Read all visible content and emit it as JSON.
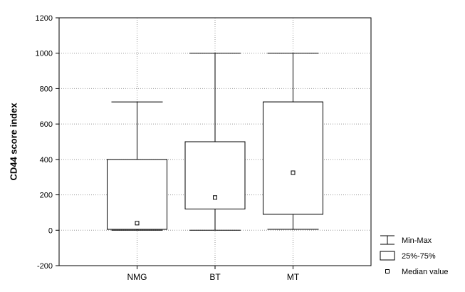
{
  "chart_data": {
    "type": "box",
    "title": "",
    "xlabel": "",
    "ylabel": "CD44 score index",
    "ylim": [
      -200,
      1200
    ],
    "yticks": [
      -200,
      0,
      200,
      400,
      600,
      800,
      1000,
      1200
    ],
    "grid": true,
    "legend_position": "bottom-right",
    "categories": [
      "NMG",
      "BT",
      "MT"
    ],
    "boxes": [
      {
        "category": "NMG",
        "min": 0,
        "q1": 5,
        "median": 40,
        "q3": 400,
        "max": 725
      },
      {
        "category": "BT",
        "min": 0,
        "q1": 120,
        "median": 185,
        "q3": 500,
        "max": 1000
      },
      {
        "category": "MT",
        "min": 5,
        "q1": 90,
        "median": 325,
        "q3": 725,
        "max": 1000
      }
    ],
    "legend": [
      {
        "symbol": "whisker",
        "label": "Min-Max"
      },
      {
        "symbol": "box",
        "label": "25%-75%"
      },
      {
        "symbol": "point",
        "label": "Median value"
      }
    ]
  }
}
